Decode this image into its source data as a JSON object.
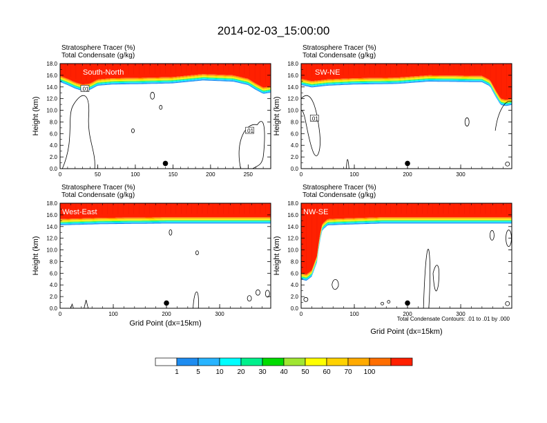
{
  "title": "2014-02-03_15:00:00",
  "colorbar": {
    "labels": [
      "1",
      "5",
      "10",
      "20",
      "30",
      "40",
      "50",
      "60",
      "70",
      "100"
    ],
    "colors": [
      "#ffffff",
      "#1e8cf0",
      "#28b4ff",
      "#00ffff",
      "#00f08c",
      "#00dc00",
      "#a0e632",
      "#ffff00",
      "#ffd200",
      "#ffaa00",
      "#ff6e00",
      "#ff2000"
    ]
  },
  "contour_note": "Total Condensate Contours: .01 to .01 by .000",
  "chart_data": [
    {
      "type": "contour",
      "line1": "Stratosphere Tracer   (%)",
      "line2": "Total Condensate   (g/kg)",
      "name": "South-North",
      "ylabel": "Height (km)",
      "xlabel": "",
      "xlim": [
        0,
        280
      ],
      "ylim": [
        0,
        18
      ],
      "xticks": [
        0,
        50,
        100,
        150,
        200,
        250
      ],
      "yticks": [
        "0.0",
        "2.0",
        "4.0",
        "6.0",
        "8.0",
        "10.0",
        "12.0",
        "14.0",
        "16.0",
        "18.0"
      ],
      "marker_x": 140,
      "tropopause_km": [
        [
          0,
          15.9
        ],
        [
          10,
          15.4
        ],
        [
          20,
          14.8
        ],
        [
          30,
          14.4
        ],
        [
          40,
          14.6
        ],
        [
          50,
          15.3
        ],
        [
          70,
          15.5
        ],
        [
          120,
          15.6
        ],
        [
          150,
          15.7
        ],
        [
          190,
          16.2
        ],
        [
          230,
          16.0
        ],
        [
          250,
          15.4
        ],
        [
          260,
          14.6
        ],
        [
          270,
          13.9
        ],
        [
          280,
          14.1
        ]
      ],
      "contour_labels": [
        {
          "x": 33,
          "y": 13.7,
          "text": ".01"
        },
        {
          "x": 252,
          "y": 6.5,
          "text": ".01"
        }
      ]
    },
    {
      "type": "contour",
      "line1": "Stratosphere Tracer   (%)",
      "line2": "Total Condensate   (g/kg)",
      "name": "SW-NE",
      "ylabel": "Height (km)",
      "xlabel": "",
      "xlim": [
        0,
        396
      ],
      "ylim": [
        0,
        18
      ],
      "xticks": [
        0,
        100,
        200,
        300
      ],
      "yticks": [
        "0.0",
        "2.0",
        "4.0",
        "6.0",
        "8.0",
        "10.0",
        "12.0",
        "14.0",
        "16.0",
        "18.0"
      ],
      "marker_x": 200,
      "tropopause_km": [
        [
          0,
          15.4
        ],
        [
          20,
          15.0
        ],
        [
          50,
          15.3
        ],
        [
          100,
          15.5
        ],
        [
          180,
          15.6
        ],
        [
          240,
          16.0
        ],
        [
          340,
          15.9
        ],
        [
          355,
          15.2
        ],
        [
          365,
          13.5
        ],
        [
          375,
          12.0
        ],
        [
          385,
          11.8
        ],
        [
          396,
          12.0
        ]
      ],
      "contour_labels": [
        {
          "x": 25,
          "y": 8.6,
          "text": ".01"
        }
      ]
    },
    {
      "type": "contour",
      "line1": "Stratosphere Tracer   (%)",
      "line2": "Total Condensate   (g/kg)",
      "name": "West-East",
      "ylabel": "Height (km)",
      "xlabel": "Grid Point (dx=15km)",
      "xlim": [
        0,
        396
      ],
      "ylim": [
        0,
        18
      ],
      "xticks": [
        0,
        100,
        200,
        300
      ],
      "yticks": [
        "0.0",
        "2.0",
        "4.0",
        "6.0",
        "8.0",
        "10.0",
        "12.0",
        "14.0",
        "16.0",
        "18.0"
      ],
      "marker_x": 200,
      "tropopause_km": [
        [
          0,
          15.3
        ],
        [
          80,
          15.5
        ],
        [
          200,
          15.6
        ],
        [
          300,
          15.6
        ],
        [
          396,
          15.6
        ]
      ],
      "contour_labels": []
    },
    {
      "type": "contour",
      "line1": "Stratosphere Tracer   (%)",
      "line2": "Total Condensate   (g/kg)",
      "name": "NW-SE",
      "ylabel": "Height (km)",
      "xlabel": "Grid Point (dx=15km)",
      "xlim": [
        0,
        396
      ],
      "ylim": [
        0,
        18
      ],
      "xticks": [
        0,
        100,
        200,
        300
      ],
      "yticks": [
        "0.0",
        "2.0",
        "4.0",
        "6.0",
        "8.0",
        "10.0",
        "12.0",
        "14.0",
        "16.0",
        "18.0"
      ],
      "marker_x": 200,
      "tropopause_km": [
        [
          0,
          6.0
        ],
        [
          10,
          5.8
        ],
        [
          20,
          6.5
        ],
        [
          30,
          9.0
        ],
        [
          35,
          12.5
        ],
        [
          40,
          14.5
        ],
        [
          50,
          15.3
        ],
        [
          80,
          15.4
        ],
        [
          150,
          15.6
        ],
        [
          250,
          15.6
        ],
        [
          396,
          15.6
        ]
      ],
      "contour_labels": []
    }
  ]
}
